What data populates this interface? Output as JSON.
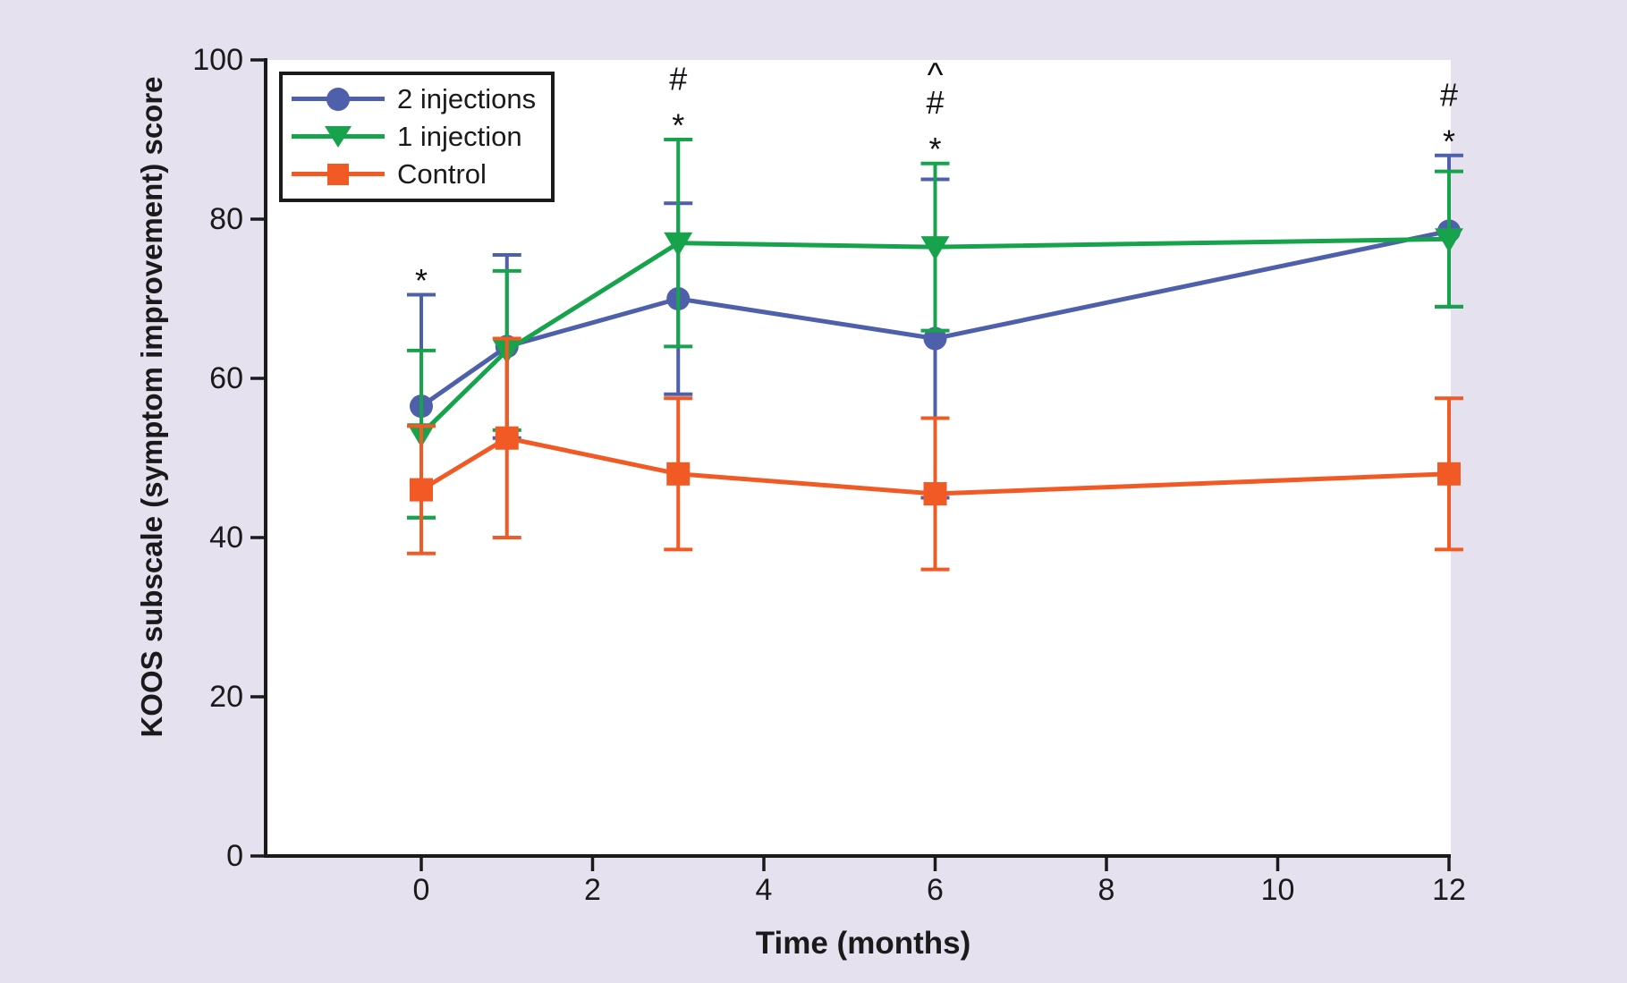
{
  "figure": {
    "background_color": "#e5e1ee",
    "plot_background_color": "#ffffff",
    "axis_color": "#1a1a1a"
  },
  "chart_data": {
    "type": "line",
    "title": "",
    "xlabel": "Time (months)",
    "ylabel": "KOOS subscale (symptom improvement) score",
    "x_months": [
      0,
      1,
      3,
      6,
      12
    ],
    "x_ticks": [
      0,
      2,
      4,
      6,
      8,
      10,
      12
    ],
    "y_ticks": [
      0,
      20,
      40,
      60,
      80,
      100
    ],
    "xlim": [
      -1.8,
      12
    ],
    "ylim": [
      0,
      100
    ],
    "grid": false,
    "error_bars": true,
    "legend_position": "top-left",
    "series": [
      {
        "name": "2 injections",
        "color": "#4e5fab",
        "marker": "circle",
        "values": [
          56.5,
          64,
          70,
          65,
          78.5
        ],
        "errors": [
          14,
          11.5,
          12,
          20,
          9.5
        ]
      },
      {
        "name": "1 injection",
        "color": "#16a34c",
        "marker": "triangle-down",
        "values": [
          53,
          63.5,
          77,
          76.5,
          77.5
        ],
        "errors": [
          10.5,
          10,
          13,
          10.5,
          8.5
        ]
      },
      {
        "name": "Control",
        "color": "#f15a24",
        "marker": "square",
        "values": [
          46,
          52.5,
          48,
          45.5,
          48
        ],
        "errors": [
          8,
          12.5,
          9.5,
          9.5,
          9.5
        ]
      }
    ],
    "annotations": [
      {
        "month": 0,
        "symbols": [
          "*"
        ]
      },
      {
        "month": 3,
        "symbols": [
          "#",
          "*"
        ]
      },
      {
        "month": 6,
        "symbols": [
          "^",
          "#",
          "*"
        ]
      },
      {
        "month": 12,
        "symbols": [
          "#",
          "*"
        ]
      }
    ]
  }
}
